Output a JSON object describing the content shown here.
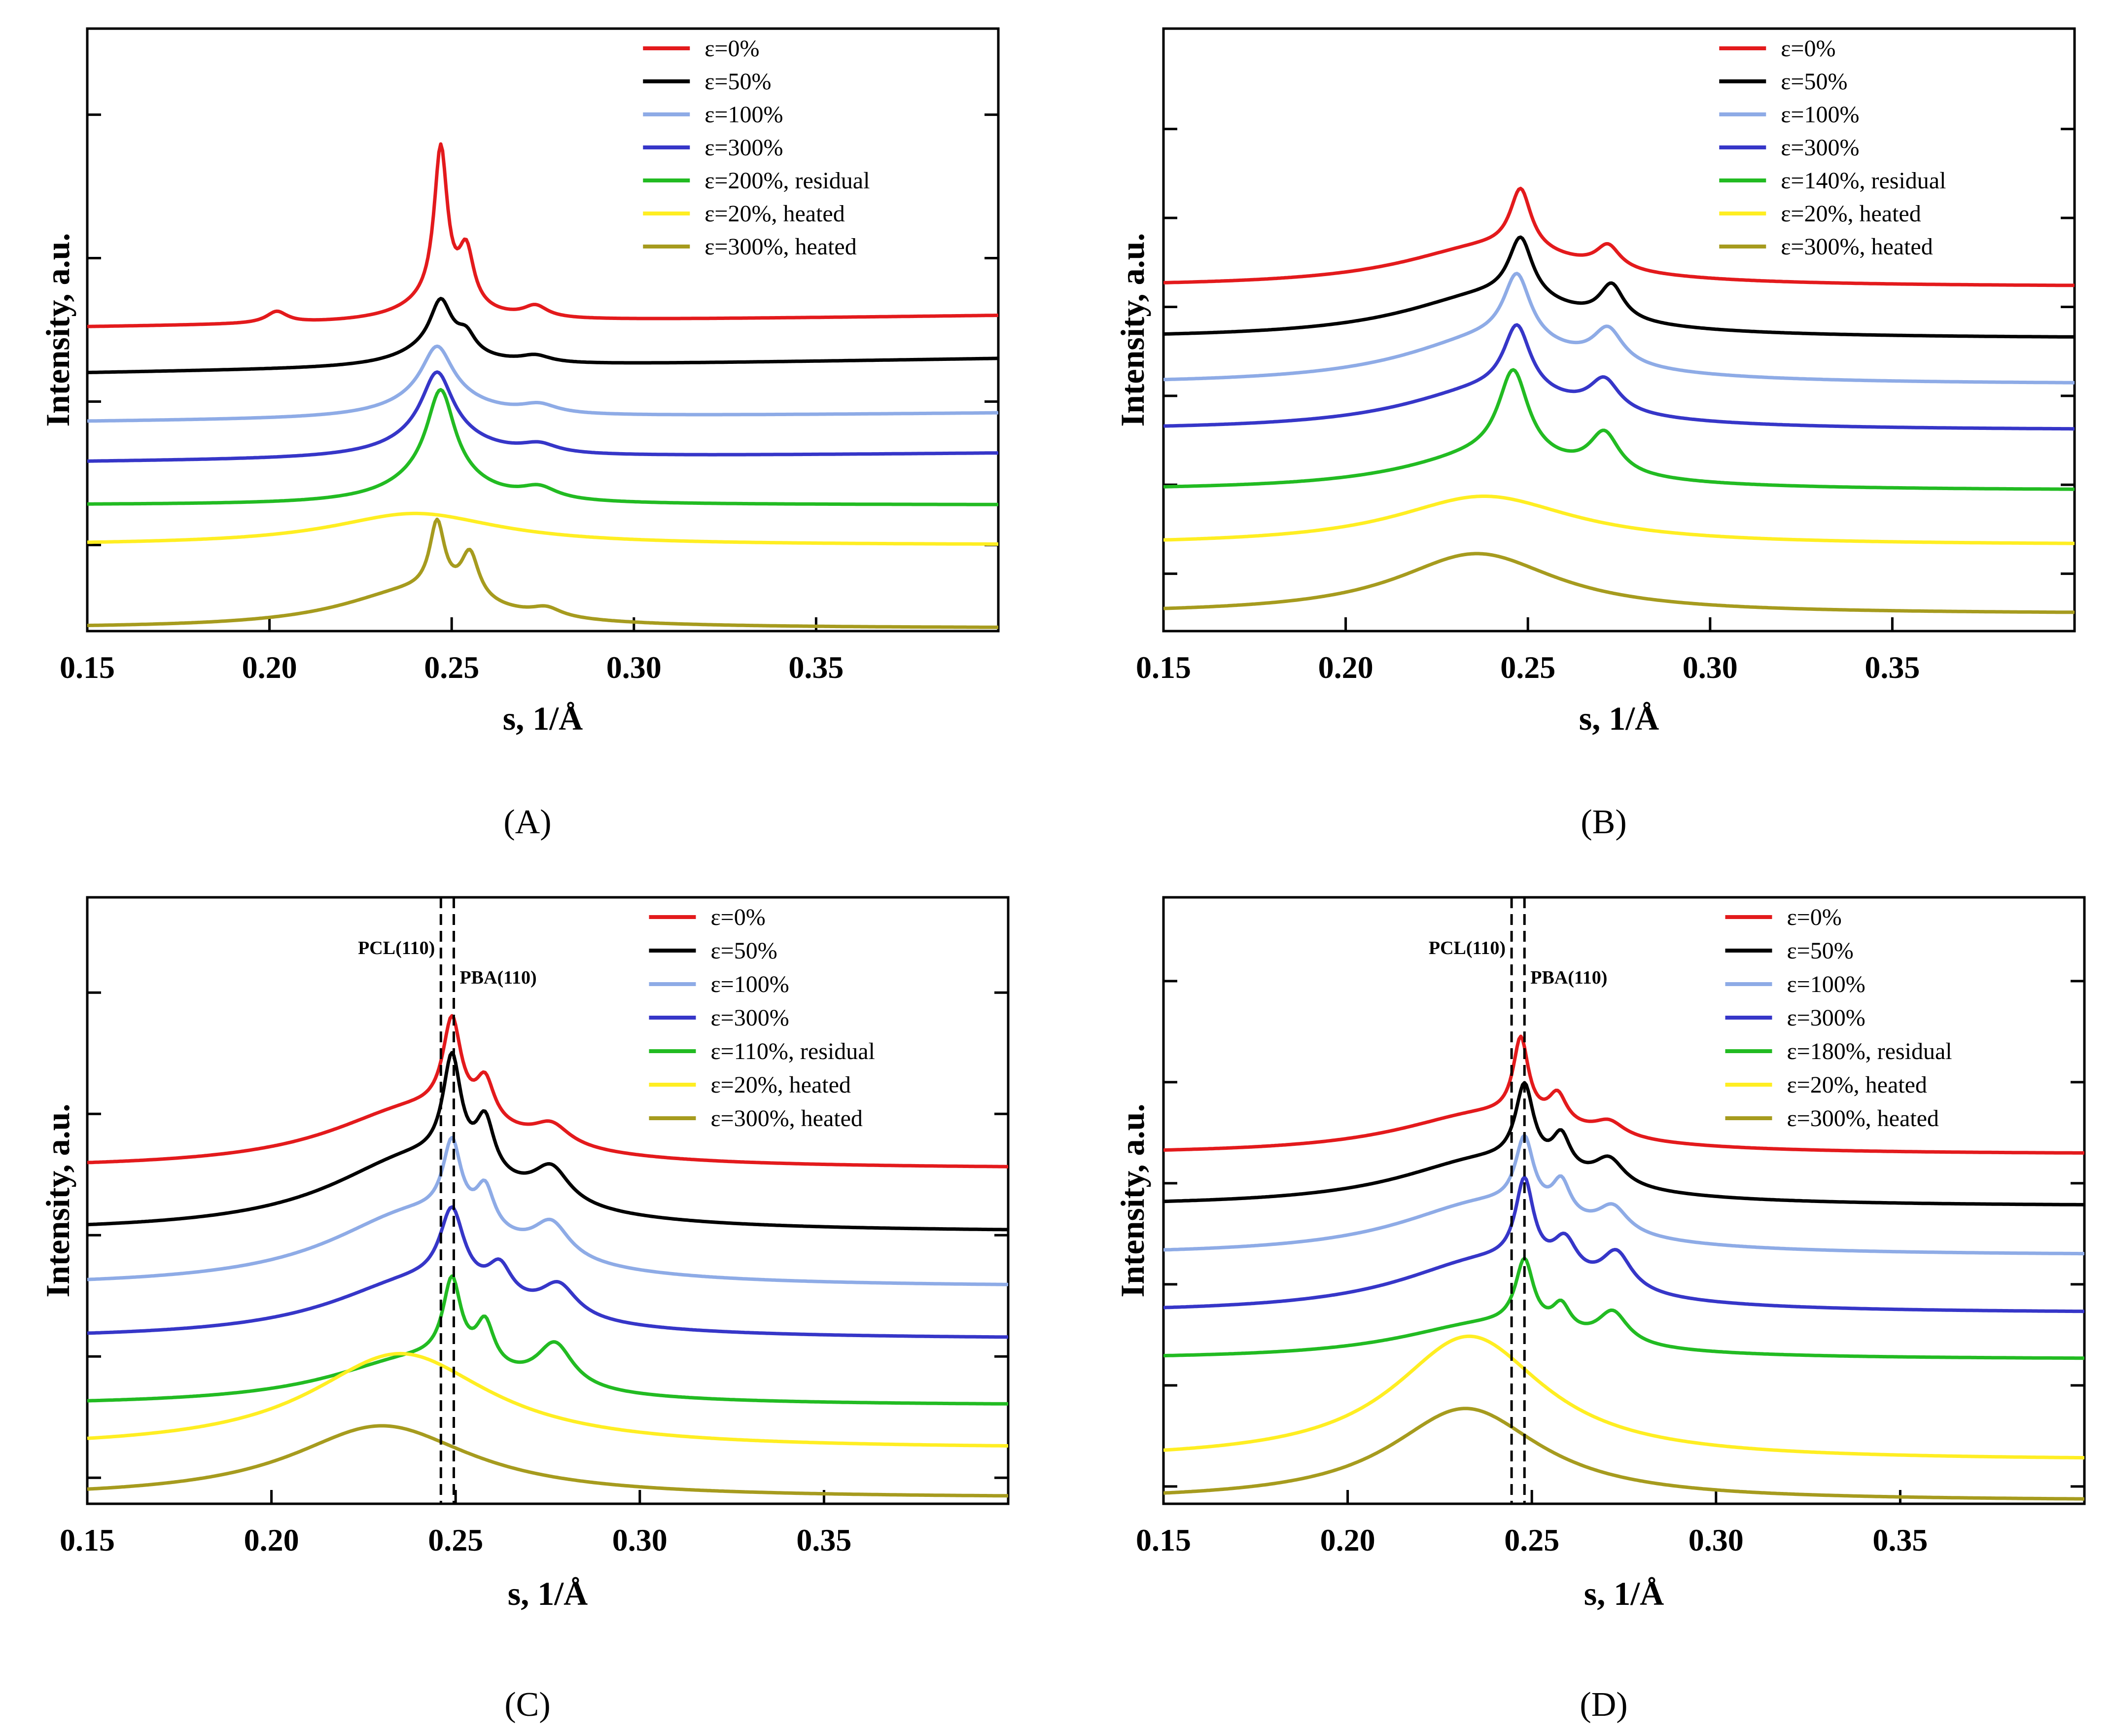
{
  "chart_data": [
    {
      "type": "line",
      "panel_label": "(A)",
      "xlabel": "s, 1/Å",
      "ylabel": "Intensity, a.u.",
      "xlim": [
        0.15,
        0.4
      ],
      "ylim": [
        0,
        10.5
      ],
      "xticks": [
        0.15,
        0.2,
        0.25,
        0.3,
        0.35
      ],
      "xtick_labels": [
        "0.15",
        "0.20",
        "0.25",
        "0.30",
        "0.35"
      ],
      "yticks": [
        1.5,
        4.0,
        6.5,
        9.0
      ],
      "legend_position": "top-right",
      "annotations": [],
      "series": [
        {
          "name": "ε=0%",
          "color": "#e31a1c",
          "baseline": 5.5,
          "start": 5.3,
          "end": 5.5,
          "peaks": [
            [
              0.247,
              2.65,
              0.0022
            ],
            [
              0.254,
              0.95,
              0.0025
            ],
            [
              0.246,
              0.35,
              0.012
            ],
            [
              0.202,
              0.2,
              0.0035
            ],
            [
              0.273,
              0.2,
              0.004
            ]
          ]
        },
        {
          "name": "ε=50%",
          "color": "#000000",
          "baseline": 4.75,
          "start": 4.5,
          "end": 4.75,
          "peaks": [
            [
              0.247,
              0.8,
              0.0035
            ],
            [
              0.254,
              0.3,
              0.003
            ],
            [
              0.246,
              0.35,
              0.012
            ],
            [
              0.273,
              0.12,
              0.005
            ]
          ]
        },
        {
          "name": "ε=100%",
          "color": "#8eabe6",
          "baseline": 3.8,
          "start": 3.65,
          "end": 3.8,
          "peaks": [
            [
              0.246,
              0.85,
              0.005
            ],
            [
              0.246,
              0.4,
              0.014
            ],
            [
              0.274,
              0.15,
              0.006
            ]
          ]
        },
        {
          "name": "ε=300%",
          "color": "#3636c8",
          "baseline": 3.1,
          "start": 2.95,
          "end": 3.1,
          "peaks": [
            [
              0.246,
              1.05,
              0.005
            ],
            [
              0.246,
              0.45,
              0.014
            ],
            [
              0.274,
              0.15,
              0.006
            ]
          ]
        },
        {
          "name": "ε=200%, residual",
          "color": "#22bb22",
          "baseline": 2.2,
          "start": 2.2,
          "end": 2.2,
          "peaks": [
            [
              0.247,
              1.45,
              0.0045
            ],
            [
              0.246,
              0.55,
              0.014
            ],
            [
              0.274,
              0.2,
              0.006
            ]
          ]
        },
        {
          "name": "ε=20%, heated",
          "color": "#ffee22",
          "baseline": 1.5,
          "start": 1.5,
          "end": 1.5,
          "peaks": [
            [
              0.24,
              0.55,
              0.028
            ]
          ]
        },
        {
          "name": "ε=300%, heated",
          "color": "#a69b1e",
          "baseline": 0.05,
          "start": 0.05,
          "end": 0.05,
          "peaks": [
            [
              0.246,
              1.2,
              0.0025
            ],
            [
              0.255,
              0.8,
              0.003
            ],
            [
              0.24,
              0.65,
              0.025
            ],
            [
              0.276,
              0.15,
              0.005
            ]
          ]
        }
      ]
    },
    {
      "type": "line",
      "panel_label": "(B)",
      "xlabel": "s, 1/Å",
      "ylabel": "Intensity, a.u.",
      "xlim": [
        0.15,
        0.4
      ],
      "ylim": [
        0,
        10.5
      ],
      "xticks": [
        0.15,
        0.2,
        0.25,
        0.3,
        0.35
      ],
      "xtick_labels": [
        "0.15",
        "0.20",
        "0.25",
        "0.30",
        "0.35"
      ],
      "yticks": [
        1.0,
        2.55,
        4.1,
        5.65,
        7.2,
        8.75
      ],
      "legend_position": "top-right",
      "annotations": [],
      "series": [
        {
          "name": "ε=0%",
          "color": "#e31a1c",
          "baseline": 6.0,
          "start": 6.0,
          "end": 6.0,
          "peaks": [
            [
              0.248,
              1.05,
              0.0035
            ],
            [
              0.272,
              0.4,
              0.004
            ],
            [
              0.24,
              0.7,
              0.03
            ]
          ]
        },
        {
          "name": "ε=50%",
          "color": "#000000",
          "baseline": 5.1,
          "start": 5.1,
          "end": 5.1,
          "peaks": [
            [
              0.248,
              1.05,
              0.004
            ],
            [
              0.273,
              0.6,
              0.004
            ],
            [
              0.24,
              0.75,
              0.03
            ]
          ]
        },
        {
          "name": "ε=100%",
          "color": "#8eabe6",
          "baseline": 4.3,
          "start": 4.3,
          "end": 4.3,
          "peaks": [
            [
              0.247,
              1.15,
              0.0045
            ],
            [
              0.272,
              0.6,
              0.005
            ],
            [
              0.24,
              0.8,
              0.03
            ]
          ]
        },
        {
          "name": "ε=300%",
          "color": "#3636c8",
          "baseline": 3.5,
          "start": 3.5,
          "end": 3.5,
          "peaks": [
            [
              0.247,
              1.15,
              0.0045
            ],
            [
              0.271,
              0.55,
              0.005
            ],
            [
              0.24,
              0.7,
              0.03
            ]
          ]
        },
        {
          "name": "ε=140%, residual",
          "color": "#22bb22",
          "baseline": 2.45,
          "start": 2.45,
          "end": 2.45,
          "peaks": [
            [
              0.246,
              1.5,
              0.005
            ],
            [
              0.271,
              0.7,
              0.005
            ],
            [
              0.24,
              0.6,
              0.03
            ]
          ]
        },
        {
          "name": "ε=20%, heated",
          "color": "#ffee22",
          "baseline": 1.5,
          "start": 1.5,
          "end": 1.5,
          "peaks": [
            [
              0.238,
              0.85,
              0.03
            ]
          ]
        },
        {
          "name": "ε=300%, heated",
          "color": "#a69b1e",
          "baseline": 0.3,
          "start": 0.3,
          "end": 0.3,
          "peaks": [
            [
              0.236,
              1.05,
              0.027
            ]
          ]
        }
      ]
    },
    {
      "type": "line",
      "panel_label": "(C)",
      "xlabel": "s, 1/Å",
      "ylabel": "Intensity, a.u.",
      "xlim": [
        0.15,
        0.4
      ],
      "ylim": [
        0,
        10.5
      ],
      "xticks": [
        0.15,
        0.2,
        0.25,
        0.3,
        0.35
      ],
      "xtick_labels": [
        "0.15",
        "0.20",
        "0.25",
        "0.30",
        "0.35"
      ],
      "yticks": [
        0.45,
        2.55,
        4.65,
        6.75,
        8.85
      ],
      "legend_position": "top-right",
      "annotations": [
        {
          "text": "PCL(110)",
          "x": 0.246
        },
        {
          "text": "PBA(110)",
          "x": 0.2495
        }
      ],
      "series": [
        {
          "name": "ε=0%",
          "color": "#e31a1c",
          "baseline": 5.8,
          "start": 5.8,
          "end": 5.8,
          "peaks": [
            [
              0.249,
              1.6,
              0.003
            ],
            [
              0.258,
              0.7,
              0.003
            ],
            [
              0.276,
              0.35,
              0.006
            ],
            [
              0.24,
              1.05,
              0.03
            ]
          ]
        },
        {
          "name": "ε=50%",
          "color": "#000000",
          "baseline": 4.7,
          "start": 4.7,
          "end": 4.7,
          "peaks": [
            [
              0.249,
              1.8,
              0.003
            ],
            [
              0.258,
              0.9,
              0.003
            ],
            [
              0.276,
              0.6,
              0.006
            ],
            [
              0.24,
              1.3,
              0.03
            ]
          ]
        },
        {
          "name": "ε=100%",
          "color": "#8eabe6",
          "baseline": 3.75,
          "start": 3.75,
          "end": 3.75,
          "peaks": [
            [
              0.249,
              1.3,
              0.003
            ],
            [
              0.258,
              0.7,
              0.003
            ],
            [
              0.276,
              0.6,
              0.006
            ],
            [
              0.24,
              1.3,
              0.03
            ]
          ]
        },
        {
          "name": "ε=300%",
          "color": "#3636c8",
          "baseline": 2.85,
          "start": 2.85,
          "end": 2.85,
          "peaks": [
            [
              0.249,
              1.3,
              0.004
            ],
            [
              0.262,
              0.55,
              0.004
            ],
            [
              0.278,
              0.55,
              0.006
            ],
            [
              0.24,
              1.0,
              0.03
            ]
          ]
        },
        {
          "name": "ε=110%, residual",
          "color": "#22bb22",
          "baseline": 1.7,
          "start": 1.7,
          "end": 1.7,
          "peaks": [
            [
              0.249,
              1.4,
              0.003
            ],
            [
              0.258,
              0.75,
              0.003
            ],
            [
              0.277,
              0.75,
              0.006
            ],
            [
              0.24,
              0.8,
              0.03
            ]
          ]
        },
        {
          "name": "ε=20%, heated",
          "color": "#ffee22",
          "baseline": 0.95,
          "start": 0.95,
          "end": 0.95,
          "peaks": [
            [
              0.235,
              1.65,
              0.03
            ]
          ]
        },
        {
          "name": "ε=300%, heated",
          "color": "#a69b1e",
          "baseline": 0.1,
          "start": 0.1,
          "end": 0.1,
          "peaks": [
            [
              0.23,
              1.25,
              0.03
            ]
          ]
        }
      ]
    },
    {
      "type": "line",
      "panel_label": "(D)",
      "xlabel": "s, 1/Å",
      "ylabel": "Intensity, a.u.",
      "xlim": [
        0.15,
        0.4
      ],
      "ylim": [
        0,
        10.5
      ],
      "xticks": [
        0.15,
        0.2,
        0.25,
        0.3,
        0.35
      ],
      "xtick_labels": [
        "0.15",
        "0.20",
        "0.25",
        "0.30",
        "0.35"
      ],
      "yticks": [
        0.3,
        2.05,
        3.8,
        5.55,
        7.3,
        9.05
      ],
      "legend_position": "top-right",
      "annotations": [
        {
          "text": "PCL(110)",
          "x": 0.2445
        },
        {
          "text": "PBA(110)",
          "x": 0.248
        }
      ],
      "series": [
        {
          "name": "ε=0%",
          "color": "#e31a1c",
          "baseline": 6.05,
          "start": 6.05,
          "end": 6.05,
          "peaks": [
            [
              0.247,
              1.35,
              0.0025
            ],
            [
              0.257,
              0.5,
              0.003
            ],
            [
              0.271,
              0.25,
              0.005
            ],
            [
              0.238,
              0.7,
              0.03
            ]
          ]
        },
        {
          "name": "ε=50%",
          "color": "#000000",
          "baseline": 5.15,
          "start": 5.15,
          "end": 5.15,
          "peaks": [
            [
              0.248,
              1.35,
              0.003
            ],
            [
              0.258,
              0.6,
              0.003
            ],
            [
              0.271,
              0.45,
              0.005
            ],
            [
              0.238,
              0.8,
              0.03
            ]
          ]
        },
        {
          "name": "ε=100%",
          "color": "#8eabe6",
          "baseline": 4.3,
          "start": 4.3,
          "end": 4.3,
          "peaks": [
            [
              0.248,
              1.2,
              0.003
            ],
            [
              0.258,
              0.6,
              0.003
            ],
            [
              0.272,
              0.45,
              0.005
            ],
            [
              0.238,
              0.9,
              0.03
            ]
          ]
        },
        {
          "name": "ε=300%",
          "color": "#3636c8",
          "baseline": 3.3,
          "start": 3.3,
          "end": 3.3,
          "peaks": [
            [
              0.248,
              1.45,
              0.003
            ],
            [
              0.259,
              0.6,
              0.004
            ],
            [
              0.273,
              0.65,
              0.005
            ],
            [
              0.238,
              0.9,
              0.03
            ]
          ]
        },
        {
          "name": "ε=180%, residual",
          "color": "#22bb22",
          "baseline": 2.5,
          "start": 2.5,
          "end": 2.5,
          "peaks": [
            [
              0.248,
              1.15,
              0.003
            ],
            [
              0.258,
              0.45,
              0.003
            ],
            [
              0.272,
              0.55,
              0.005
            ],
            [
              0.238,
              0.6,
              0.03
            ]
          ]
        },
        {
          "name": "ε=20%, heated",
          "color": "#ffee22",
          "baseline": 0.75,
          "start": 0.75,
          "end": 0.75,
          "peaks": [
            [
              0.233,
              2.15,
              0.025
            ]
          ]
        },
        {
          "name": "ε=300%, heated",
          "color": "#a69b1e",
          "baseline": 0.05,
          "start": 0.05,
          "end": 0.05,
          "peaks": [
            [
              0.232,
              1.6,
              0.025
            ]
          ]
        }
      ]
    }
  ]
}
